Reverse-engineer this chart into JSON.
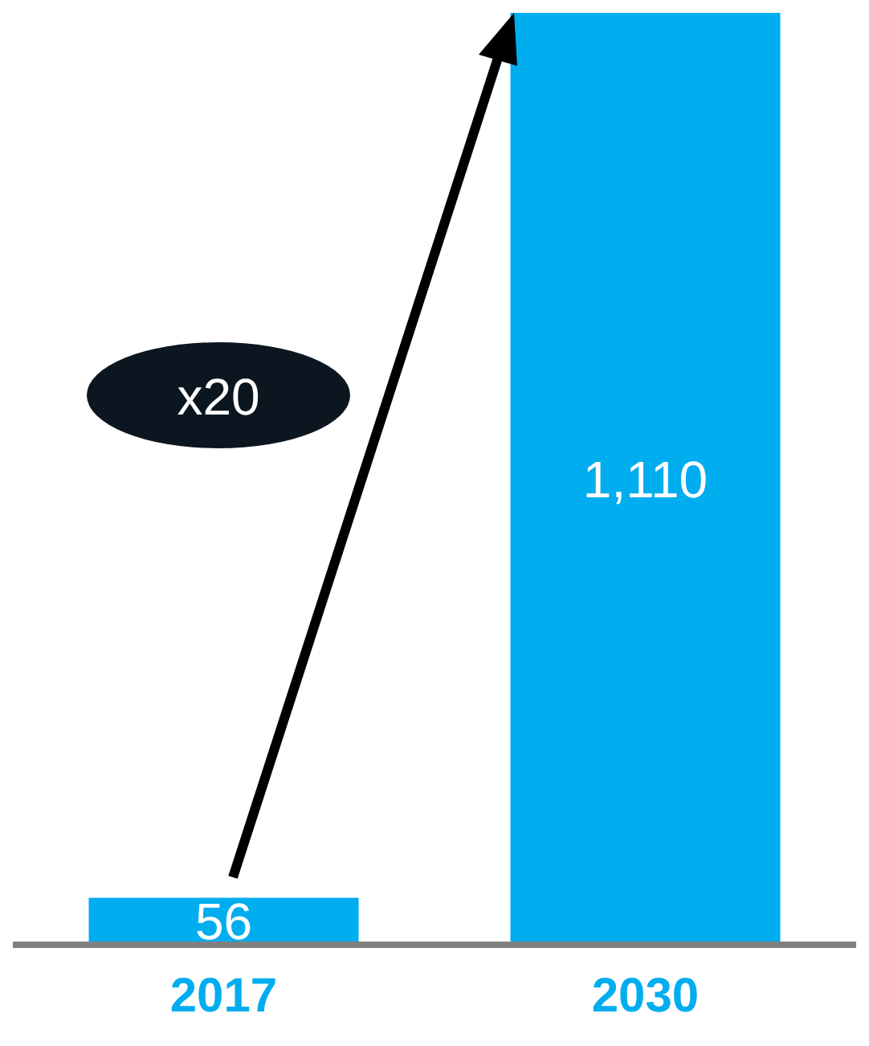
{
  "chart_data": {
    "type": "bar",
    "categories": [
      "2017",
      "2030"
    ],
    "values": [
      56,
      1110
    ],
    "value_labels": [
      "56",
      "1,110"
    ],
    "colors": [
      "#00adef",
      "#00adef"
    ],
    "annotations": [
      "x20"
    ]
  }
}
